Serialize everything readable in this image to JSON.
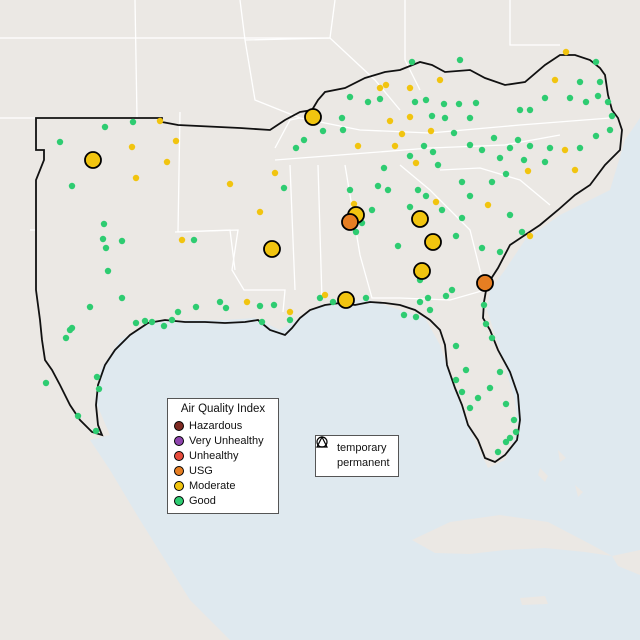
{
  "map": {
    "type": "air-quality-monitor-map",
    "region": "Southeastern United States"
  },
  "legend": {
    "title": "Air Quality Index",
    "categories": [
      {
        "label": "Hazardous",
        "color": "#7e2a22"
      },
      {
        "label": "Very Unhealthy",
        "color": "#8e44ad"
      },
      {
        "label": "Unhealthy",
        "color": "#e74c3c"
      },
      {
        "label": "USG",
        "color": "#e67e22"
      },
      {
        "label": "Moderate",
        "color": "#f1c40f"
      },
      {
        "label": "Good",
        "color": "#2ecc71"
      }
    ]
  },
  "type_legend": {
    "items": [
      {
        "label": "temporary",
        "symbol": "circle"
      },
      {
        "label": "permanent",
        "symbol": "triangle"
      }
    ]
  },
  "colors": {
    "water": "#dfe9ef",
    "land": "#ebe8e4",
    "border": "#111111",
    "state_line": "#ffffff"
  }
}
